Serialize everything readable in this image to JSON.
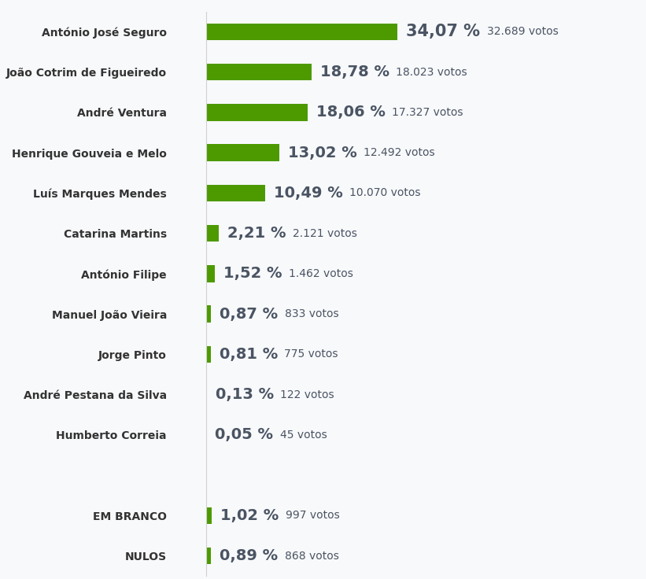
{
  "chart_data": {
    "type": "bar",
    "orientation": "horizontal",
    "categories": [
      "António José Seguro",
      "João Cotrim de Figueiredo",
      "André Ventura",
      "Henrique Gouveia e Melo",
      "Luís Marques Mendes",
      "Catarina Martins",
      "António Filipe",
      "Manuel João Vieira",
      "Jorge Pinto",
      "André Pestana da Silva",
      "Humberto Correia",
      null,
      "EM BRANCO",
      "NULOS"
    ],
    "values": [
      34.07,
      18.78,
      18.06,
      13.02,
      10.49,
      2.21,
      1.52,
      0.87,
      0.81,
      0.13,
      0.05,
      null,
      1.02,
      0.89
    ],
    "value_labels": [
      "34,07 %",
      "18,78 %",
      "18,06 %",
      "13,02 %",
      "10,49 %",
      "2,21 %",
      "1,52 %",
      "0,87 %",
      "0,81 %",
      "0,13 %",
      "0,05 %",
      null,
      "1,02 %",
      "0,89 %"
    ],
    "votes": [
      32689,
      18023,
      17327,
      12492,
      10070,
      2121,
      1462,
      833,
      775,
      122,
      45,
      null,
      997,
      868
    ],
    "vote_labels": [
      "32.689 votos",
      "18.023 votos",
      "17.327 votos",
      "12.492 votos",
      "10.070 votos",
      "2.121 votos",
      "1.462 votos",
      "833 votos",
      "775 votos",
      "122 votos",
      "45 votos",
      null,
      "997 votos",
      "868 votos"
    ],
    "color": "#4c9a00",
    "xlim": [
      0,
      75
    ],
    "data_labels": true,
    "tick_labels": "y",
    "grid": false
  }
}
